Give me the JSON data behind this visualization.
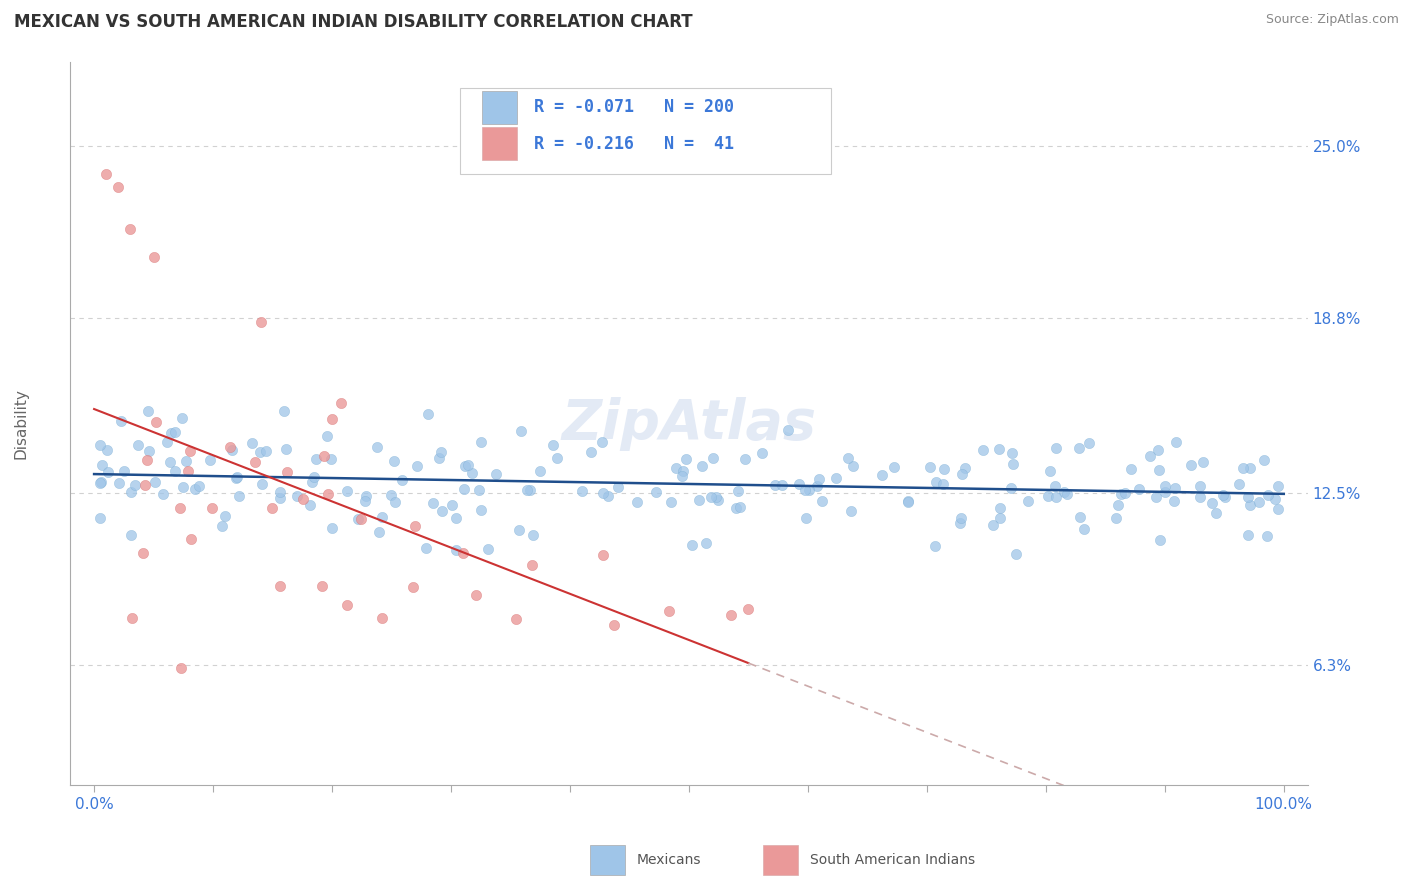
{
  "title": "MEXICAN VS SOUTH AMERICAN INDIAN DISABILITY CORRELATION CHART",
  "source": "Source: ZipAtlas.com",
  "ylabel": "Disability",
  "yticks": [
    6.3,
    12.5,
    18.8,
    25.0
  ],
  "ytick_labels": [
    "6.3%",
    "12.5%",
    "18.8%",
    "25.0%"
  ],
  "xlim": [
    -0.02,
    1.02
  ],
  "ylim": [
    2.0,
    28.0
  ],
  "blue_color": "#9fc5e8",
  "pink_color": "#ea9999",
  "blue_line_color": "#1f4e8c",
  "pink_line_color": "#cc3333",
  "dashed_line_color": "#ccaaaa",
  "text_color_blue": "#3c78d8",
  "background_color": "#ffffff",
  "grid_color": "#cccccc",
  "watermark": "ZipAtlas",
  "legend_r1": "-0.071",
  "legend_n1": "200",
  "legend_r2": "-0.216",
  "legend_n2": " 41"
}
